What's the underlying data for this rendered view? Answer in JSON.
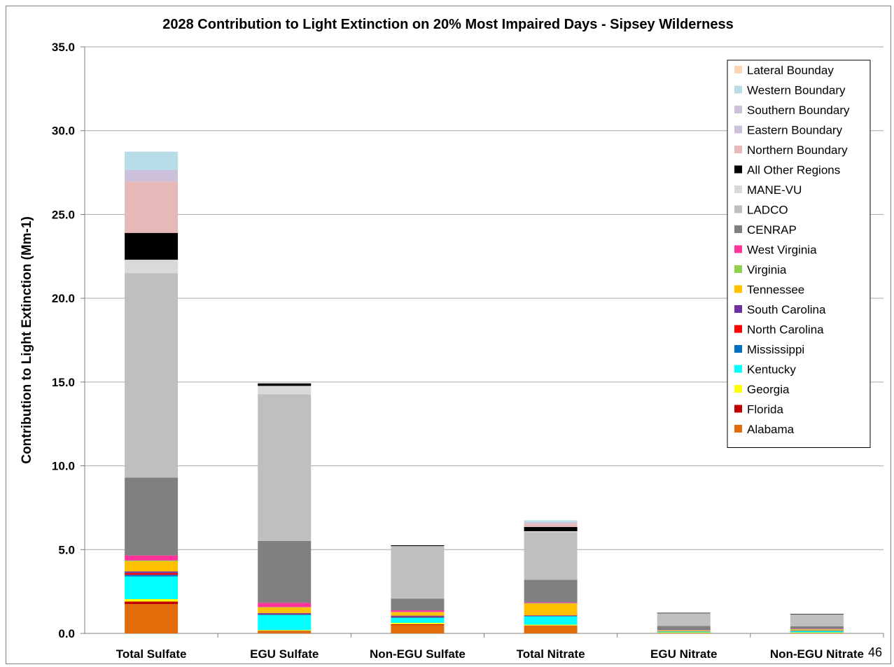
{
  "page_number": "46",
  "chart_data": {
    "type": "bar",
    "stacked": true,
    "title": "2028 Contribution to Light Extinction on 20% Most Impaired Days - Sipsey Wilderness",
    "xlabel": "",
    "ylabel": "Contribution to Light Extinction (Mm-1)",
    "ylim": [
      0,
      35
    ],
    "yticks": [
      "0.0",
      "5.0",
      "10.0",
      "15.0",
      "20.0",
      "25.0",
      "30.0",
      "35.0"
    ],
    "grid": true,
    "legend_position": "top-right",
    "categories": [
      "Total Sulfate",
      "EGU Sulfate",
      "Non-EGU Sulfate",
      "Total Nitrate",
      "EGU Nitrate",
      "Non-EGU Nitrate"
    ],
    "series": [
      {
        "name": "Alabama",
        "color": "#e36c0a",
        "values": [
          1.75,
          0.12,
          0.5,
          0.45,
          0.03,
          0.03
        ]
      },
      {
        "name": "Florida",
        "color": "#c00000",
        "values": [
          0.15,
          0.03,
          0.05,
          0.02,
          0.0,
          0.0
        ]
      },
      {
        "name": "Georgia",
        "color": "#ffff00",
        "values": [
          0.15,
          0.05,
          0.08,
          0.05,
          0.03,
          0.03
        ]
      },
      {
        "name": "Kentucky",
        "color": "#00ffff",
        "values": [
          1.35,
          0.9,
          0.3,
          0.5,
          0.04,
          0.08
        ]
      },
      {
        "name": "Mississippi",
        "color": "#0070c0",
        "values": [
          0.1,
          0.05,
          0.05,
          0.03,
          0.02,
          0.02
        ]
      },
      {
        "name": "North Carolina",
        "color": "#ff0000",
        "values": [
          0.1,
          0.03,
          0.03,
          0.01,
          0.0,
          0.0
        ]
      },
      {
        "name": "South Carolina",
        "color": "#7030a0",
        "values": [
          0.1,
          0.04,
          0.05,
          0.02,
          0.0,
          0.01
        ]
      },
      {
        "name": "Tennessee",
        "color": "#ffc000",
        "values": [
          0.6,
          0.33,
          0.2,
          0.7,
          0.04,
          0.05
        ]
      },
      {
        "name": "Virginia",
        "color": "#92d050",
        "values": [
          0.05,
          0.02,
          0.02,
          0.02,
          0.02,
          0.03
        ]
      },
      {
        "name": "West Virginia",
        "color": "#ff3399",
        "values": [
          0.3,
          0.25,
          0.1,
          0.05,
          0.02,
          0.03
        ]
      },
      {
        "name": "CENRAP",
        "color": "#808080",
        "values": [
          4.65,
          3.7,
          0.7,
          1.35,
          0.25,
          0.15
        ]
      },
      {
        "name": "LADCO",
        "color": "#bfbfbf",
        "values": [
          12.2,
          8.75,
          3.1,
          2.85,
          0.75,
          0.7
        ]
      },
      {
        "name": "MANE-VU",
        "color": "#d9d9d9",
        "values": [
          0.8,
          0.5,
          0.03,
          0.05,
          0.0,
          0.0
        ]
      },
      {
        "name": "All Other Regions",
        "color": "#000000",
        "values": [
          1.6,
          0.15,
          0.05,
          0.25,
          0.03,
          0.03
        ]
      },
      {
        "name": "Northern Boundary",
        "color": "#e6b9b8",
        "values": [
          3.05,
          0.0,
          0.0,
          0.2,
          0.0,
          0.0
        ]
      },
      {
        "name": "Eastern Boundary",
        "color": "#ccc0da",
        "values": [
          0.35,
          0.0,
          0.0,
          0.05,
          0.0,
          0.0
        ]
      },
      {
        "name": "Southern Boundary",
        "color": "#ccc0da",
        "values": [
          0.35,
          0.0,
          0.0,
          0.05,
          0.0,
          0.0
        ]
      },
      {
        "name": "Western Boundary",
        "color": "#b7dee8",
        "values": [
          1.1,
          0.0,
          0.0,
          0.1,
          0.0,
          0.0
        ]
      },
      {
        "name": "Lateral Bounday",
        "color": "#fcd5b4",
        "values": [
          0.0,
          0.0,
          0.0,
          0.0,
          0.0,
          0.0
        ]
      }
    ]
  }
}
